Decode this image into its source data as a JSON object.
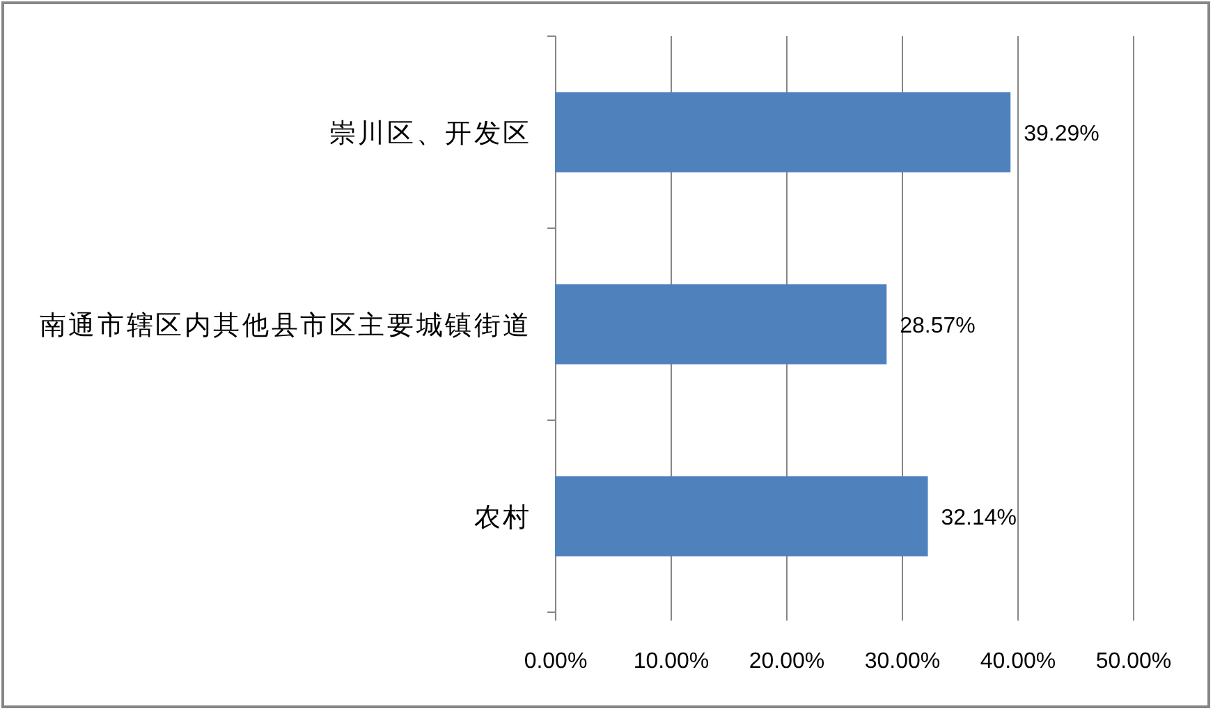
{
  "chart_data": {
    "type": "bar",
    "orientation": "horizontal",
    "categories": [
      "崇川区、开发区",
      "南通市辖区内其他县市区主要城镇街道",
      "农村"
    ],
    "values": [
      39.29,
      28.57,
      32.14
    ],
    "color": "#4f81bd",
    "value_labels": [
      "39.29%",
      "28.57%",
      "32.14%"
    ],
    "xlim": [
      0,
      50
    ],
    "xticks": [
      {
        "value": 0,
        "label": "0.00%"
      },
      {
        "value": 10,
        "label": "10.00%"
      },
      {
        "value": 20,
        "label": "20.00%"
      },
      {
        "value": 30,
        "label": "30.00%"
      },
      {
        "value": 40,
        "label": "40.00%"
      },
      {
        "value": 50,
        "label": "50.00%"
      }
    ],
    "grid": "x"
  }
}
